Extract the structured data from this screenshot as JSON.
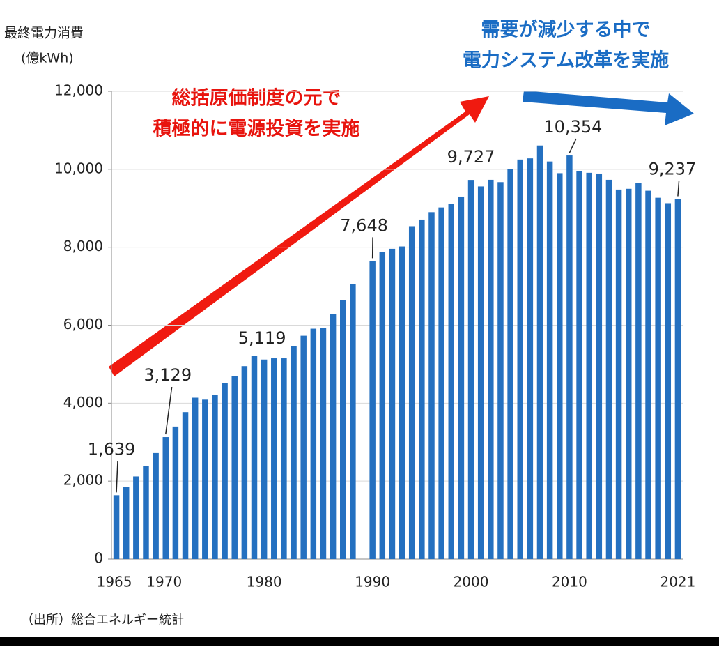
{
  "chart_data": {
    "type": "bar",
    "y_label_lines": [
      "最終電力消費",
      "(億kWh)"
    ],
    "annotations": {
      "red": [
        "総括原価制度の元で",
        "積極的に電源投資を実施"
      ],
      "blue": [
        "需要が減少する中で",
        "電力システム改革を実施"
      ]
    },
    "source": "（出所）総合エネルギー統計",
    "color": "#2470c0",
    "ylim": [
      0,
      12000
    ],
    "yticks": [
      0,
      {
        "value": 2000,
        "label": "2,000"
      },
      {
        "value": 4000,
        "label": "4,000"
      },
      {
        "value": 6000,
        "label": "6,000"
      },
      {
        "value": 8000,
        "label": "8,000"
      },
      {
        "value": 10000,
        "label": "10,000"
      },
      {
        "value": 12000,
        "label": "12,000"
      }
    ],
    "grid": true,
    "categories": [
      "1965",
      null,
      null,
      null,
      null,
      "1970",
      null,
      null,
      null,
      null,
      null,
      null,
      null,
      null,
      null,
      "1980",
      null,
      null,
      null,
      null,
      null,
      null,
      null,
      null,
      null,
      null,
      "1990",
      null,
      null,
      null,
      null,
      null,
      null,
      null,
      null,
      null,
      "2000",
      null,
      null,
      null,
      null,
      null,
      null,
      null,
      null,
      null,
      "2010",
      null,
      null,
      null,
      null,
      null,
      null,
      null,
      null,
      null,
      null,
      "2021"
    ],
    "values": [
      1639,
      1850,
      2120,
      2380,
      2720,
      3129,
      3400,
      3770,
      4140,
      4090,
      4210,
      4520,
      4690,
      4950,
      5220,
      5119,
      5150,
      5150,
      5460,
      5730,
      5910,
      5920,
      6290,
      6640,
      7050,
      null,
      7648,
      7870,
      7960,
      8020,
      8540,
      8710,
      8900,
      9020,
      9110,
      9300,
      9727,
      9560,
      9730,
      9670,
      10000,
      10250,
      10280,
      10610,
      10200,
      9900,
      10354,
      9960,
      9910,
      9890,
      9730,
      9480,
      9500,
      9650,
      9450,
      9270,
      9130,
      9237
    ],
    "value_labels": [
      "1,639",
      null,
      null,
      null,
      null,
      "3,129",
      null,
      null,
      null,
      null,
      null,
      null,
      null,
      null,
      null,
      "5,119",
      null,
      null,
      null,
      null,
      null,
      null,
      null,
      null,
      null,
      null,
      "7,648",
      null,
      null,
      null,
      null,
      null,
      null,
      null,
      null,
      null,
      "9,727",
      null,
      null,
      null,
      null,
      null,
      null,
      null,
      null,
      null,
      "10,354",
      null,
      null,
      null,
      null,
      null,
      null,
      null,
      null,
      null,
      null,
      "9,237"
    ]
  }
}
